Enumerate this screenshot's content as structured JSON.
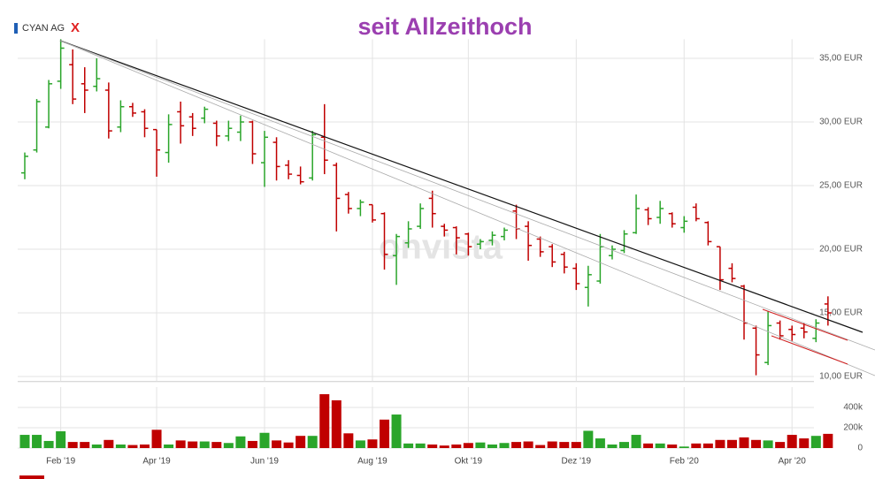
{
  "chart_data": {
    "type": "ohlc",
    "title": "seit Allzeithoch",
    "legend": "CYAN AG",
    "legend_color": "#1f5fb5",
    "legend_remove": "X",
    "watermark": "onvista",
    "up_color": "#2aa52a",
    "down_color": "#c00000",
    "grid": true,
    "categories": [
      null,
      null,
      null,
      "Feb '19",
      null,
      null,
      null,
      null,
      null,
      null,
      null,
      "Apr '19",
      null,
      null,
      null,
      null,
      null,
      null,
      null,
      null,
      "Jun '19",
      null,
      null,
      null,
      null,
      null,
      null,
      null,
      null,
      "Aug '19",
      null,
      null,
      null,
      null,
      null,
      null,
      null,
      "Okt '19",
      null,
      null,
      null,
      null,
      null,
      null,
      null,
      null,
      "Dez '19",
      null,
      null,
      null,
      null,
      null,
      null,
      null,
      null,
      "Feb '20",
      null,
      null,
      null,
      null,
      null,
      null,
      null,
      null,
      "Apr '20",
      null,
      null,
      null
    ],
    "open": [
      26.0,
      27.8,
      29.6,
      33.2,
      34.5,
      33.0,
      32.8,
      32.5,
      29.6,
      31.2,
      30.8,
      29.4,
      27.6,
      30.8,
      30.4,
      30.3,
      29.9,
      28.9,
      29.2,
      30.0,
      26.8,
      28.4,
      26.6,
      25.8,
      25.6,
      28.8,
      26.6,
      24.3,
      23.2,
      23.5,
      22.8,
      19.5,
      20.5,
      21.8,
      24.0,
      21.8,
      21.7,
      21.2,
      20.4,
      20.7,
      21.0,
      23.0,
      21.8,
      20.8,
      20.2,
      19.6,
      18.5,
      17.0,
      17.5,
      19.5,
      19.9,
      21.3,
      23.1,
      22.5,
      22.8,
      21.7,
      23.3,
      22.1,
      20.2,
      18.5,
      17.1,
      13.8,
      11.1,
      14.2,
      13.7,
      13.8,
      13.0,
      15.7
    ],
    "high": [
      27.6,
      31.8,
      33.3,
      36.5,
      35.7,
      34.3,
      35.0,
      33.1,
      31.7,
      31.5,
      31.0,
      29.4,
      30.6,
      31.6,
      30.7,
      31.2,
      30.1,
      30.1,
      30.5,
      30.1,
      29.3,
      28.8,
      27.0,
      26.5,
      29.3,
      31.4,
      26.8,
      24.5,
      23.9,
      23.5,
      22.9,
      21.2,
      22.2,
      23.6,
      24.6,
      22.0,
      21.8,
      21.3,
      20.8,
      21.4,
      21.7,
      23.5,
      22.2,
      21.0,
      20.4,
      19.8,
      18.9,
      18.7,
      21.2,
      20.3,
      21.5,
      24.3,
      23.3,
      23.8,
      22.9,
      22.6,
      23.6,
      22.2,
      20.2,
      18.9,
      17.2,
      14.0,
      15.1,
      14.4,
      14.0,
      14.2,
      14.5,
      16.3
    ],
    "low": [
      25.5,
      27.6,
      29.5,
      32.6,
      31.4,
      30.7,
      32.4,
      28.7,
      29.2,
      30.4,
      28.8,
      25.7,
      26.8,
      28.3,
      28.9,
      29.9,
      28.1,
      28.5,
      28.5,
      26.7,
      24.9,
      25.4,
      25.5,
      25.1,
      25.4,
      25.9,
      21.4,
      22.8,
      22.6,
      22.1,
      18.4,
      17.2,
      20.1,
      21.6,
      21.7,
      21.0,
      19.6,
      19.5,
      20.0,
      20.3,
      20.7,
      20.8,
      19.1,
      19.4,
      18.6,
      18.1,
      16.8,
      15.5,
      17.3,
      19.2,
      19.7,
      21.2,
      21.9,
      22.0,
      21.7,
      21.3,
      22.2,
      20.3,
      16.8,
      17.4,
      12.9,
      10.1,
      10.9,
      12.9,
      12.8,
      13.0,
      12.7,
      14.0
    ],
    "close": [
      27.3,
      31.6,
      33.0,
      35.8,
      31.8,
      32.5,
      33.4,
      29.3,
      31.2,
      30.7,
      29.5,
      27.8,
      29.8,
      29.7,
      29.5,
      31.0,
      28.9,
      29.5,
      30.0,
      27.5,
      28.8,
      26.5,
      25.9,
      25.3,
      29.0,
      27.0,
      24.0,
      23.2,
      23.7,
      22.3,
      19.6,
      21.0,
      21.6,
      23.2,
      22.8,
      21.5,
      20.9,
      20.2,
      20.6,
      21.1,
      21.5,
      21.6,
      20.3,
      19.8,
      19.0,
      18.6,
      17.3,
      18.0,
      20.2,
      20.0,
      21.2,
      23.2,
      22.4,
      23.2,
      22.0,
      22.2,
      22.4,
      20.6,
      17.6,
      17.7,
      14.2,
      11.7,
      14.0,
      13.2,
      13.3,
      13.5,
      14.2,
      15.0
    ],
    "volume": [
      130000,
      130000,
      70000,
      165000,
      60000,
      60000,
      35000,
      80000,
      35000,
      30000,
      35000,
      180000,
      35000,
      75000,
      65000,
      65000,
      60000,
      50000,
      115000,
      70000,
      150000,
      75000,
      55000,
      120000,
      120000,
      530000,
      470000,
      145000,
      75000,
      85000,
      280000,
      330000,
      45000,
      45000,
      35000,
      25000,
      35000,
      50000,
      55000,
      35000,
      50000,
      60000,
      65000,
      30000,
      65000,
      60000,
      60000,
      170000,
      95000,
      35000,
      60000,
      130000,
      45000,
      45000,
      35000,
      15000,
      45000,
      45000,
      80000,
      80000,
      105000,
      80000,
      75000,
      60000,
      130000,
      95000,
      120000,
      140000
    ],
    "ylim": [
      9.6,
      36.5
    ],
    "yticks": [
      {
        "value": 10,
        "label": "10,00 EUR"
      },
      {
        "value": 15,
        "label": "15,00 EUR"
      },
      {
        "value": 20,
        "label": "20,00 EUR"
      },
      {
        "value": 25,
        "label": "25,00 EUR"
      },
      {
        "value": 30,
        "label": "30,00 EUR"
      },
      {
        "value": 35,
        "label": "35,00 EUR"
      }
    ],
    "volume_ylim": [
      0,
      600000
    ],
    "volume_yticks": [
      0,
      {
        "value": 200000,
        "label": "200k"
      },
      {
        "value": 400000,
        "label": "400k"
      }
    ]
  }
}
